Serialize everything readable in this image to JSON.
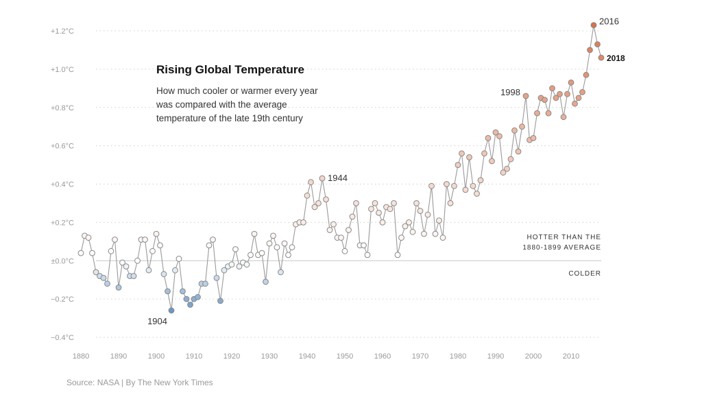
{
  "chart_data": {
    "type": "scatter",
    "title": "Rising Global Temperature",
    "subtitle": [
      "How much cooler or warmer every year",
      "was compared with the average",
      "temperature of the late 19th century"
    ],
    "source": "Source: NASA | By The New York Times",
    "xlabel": "",
    "ylabel": "",
    "xlim": [
      1880,
      2018
    ],
    "ylim": [
      -0.4,
      1.2
    ],
    "grid": true,
    "connected": true,
    "x_ticks": [
      1880,
      1890,
      1900,
      1910,
      1920,
      1930,
      1940,
      1950,
      1960,
      1970,
      1980,
      1990,
      2000,
      2010
    ],
    "y_ticks": [
      {
        "value": 1.2,
        "label": "+1.2°C"
      },
      {
        "value": 1.0,
        "label": "+1.0°C"
      },
      {
        "value": 0.8,
        "label": "+0.8°C"
      },
      {
        "value": 0.6,
        "label": "+0.6°C"
      },
      {
        "value": 0.4,
        "label": "+0.4°C"
      },
      {
        "value": 0.2,
        "label": "+0.2°C"
      },
      {
        "value": 0.0,
        "label": "±0.0°C"
      },
      {
        "value": -0.2,
        "label": "−0.2°C"
      },
      {
        "value": -0.4,
        "label": "−0.4°C"
      }
    ],
    "colors": {
      "cold": "#6a98c4",
      "neutral": "#ffffff",
      "hot": "#d9734a",
      "line": "#999999",
      "marker_stroke": "#888888"
    },
    "reference_labels": {
      "hotter": [
        "HOTTER THAN THE",
        "1880-1899 AVERAGE"
      ],
      "colder": "COLDER"
    },
    "annotations": [
      {
        "year": 1904,
        "text": "1904",
        "bold": false
      },
      {
        "year": 1944,
        "text": "1944",
        "bold": false
      },
      {
        "year": 1998,
        "text": "1998",
        "bold": false
      },
      {
        "year": 2016,
        "text": "2016",
        "bold": false
      },
      {
        "year": 2018,
        "text": "2018",
        "bold": true
      }
    ],
    "x": [
      1880,
      1881,
      1882,
      1883,
      1884,
      1885,
      1886,
      1887,
      1888,
      1889,
      1890,
      1891,
      1892,
      1893,
      1894,
      1895,
      1896,
      1897,
      1898,
      1899,
      1900,
      1901,
      1902,
      1903,
      1904,
      1905,
      1906,
      1907,
      1908,
      1909,
      1910,
      1911,
      1912,
      1913,
      1914,
      1915,
      1916,
      1917,
      1918,
      1919,
      1920,
      1921,
      1922,
      1923,
      1924,
      1925,
      1926,
      1927,
      1928,
      1929,
      1930,
      1931,
      1932,
      1933,
      1934,
      1935,
      1936,
      1937,
      1938,
      1939,
      1940,
      1941,
      1942,
      1943,
      1944,
      1945,
      1946,
      1947,
      1948,
      1949,
      1950,
      1951,
      1952,
      1953,
      1954,
      1955,
      1956,
      1957,
      1958,
      1959,
      1960,
      1961,
      1962,
      1963,
      1964,
      1965,
      1966,
      1967,
      1968,
      1969,
      1970,
      1971,
      1972,
      1973,
      1974,
      1975,
      1976,
      1977,
      1978,
      1979,
      1980,
      1981,
      1982,
      1983,
      1984,
      1985,
      1986,
      1987,
      1988,
      1989,
      1990,
      1991,
      1992,
      1993,
      1994,
      1995,
      1996,
      1997,
      1998,
      1999,
      2000,
      2001,
      2002,
      2003,
      2004,
      2005,
      2006,
      2007,
      2008,
      2009,
      2010,
      2011,
      2012,
      2013,
      2014,
      2015,
      2016,
      2017,
      2018
    ],
    "values": [
      0.04,
      0.13,
      0.12,
      0.04,
      -0.06,
      -0.08,
      -0.09,
      -0.12,
      0.05,
      0.11,
      -0.14,
      -0.01,
      -0.03,
      -0.08,
      -0.08,
      0.0,
      0.11,
      0.11,
      -0.05,
      0.05,
      0.14,
      0.08,
      -0.07,
      -0.16,
      -0.26,
      -0.05,
      0.01,
      -0.16,
      -0.2,
      -0.23,
      -0.2,
      -0.19,
      -0.12,
      -0.12,
      0.08,
      0.11,
      -0.09,
      -0.21,
      -0.05,
      -0.03,
      -0.02,
      0.06,
      -0.03,
      -0.01,
      -0.02,
      0.03,
      0.14,
      0.03,
      0.04,
      -0.11,
      0.09,
      0.13,
      0.07,
      -0.06,
      0.09,
      0.03,
      0.07,
      0.19,
      0.2,
      0.2,
      0.34,
      0.41,
      0.28,
      0.3,
      0.43,
      0.32,
      0.16,
      0.19,
      0.12,
      0.12,
      0.05,
      0.16,
      0.23,
      0.3,
      0.08,
      0.08,
      0.03,
      0.27,
      0.3,
      0.25,
      0.2,
      0.28,
      0.27,
      0.3,
      0.03,
      0.12,
      0.18,
      0.2,
      0.15,
      0.3,
      0.26,
      0.14,
      0.24,
      0.39,
      0.14,
      0.21,
      0.12,
      0.4,
      0.3,
      0.39,
      0.5,
      0.56,
      0.37,
      0.54,
      0.39,
      0.35,
      0.42,
      0.56,
      0.64,
      0.52,
      0.67,
      0.65,
      0.46,
      0.48,
      0.53,
      0.68,
      0.57,
      0.7,
      0.86,
      0.63,
      0.64,
      0.77,
      0.85,
      0.84,
      0.77,
      0.9,
      0.85,
      0.87,
      0.75,
      0.87,
      0.93,
      0.82,
      0.85,
      0.88,
      0.97,
      1.1,
      1.23,
      1.13,
      1.06
    ]
  }
}
